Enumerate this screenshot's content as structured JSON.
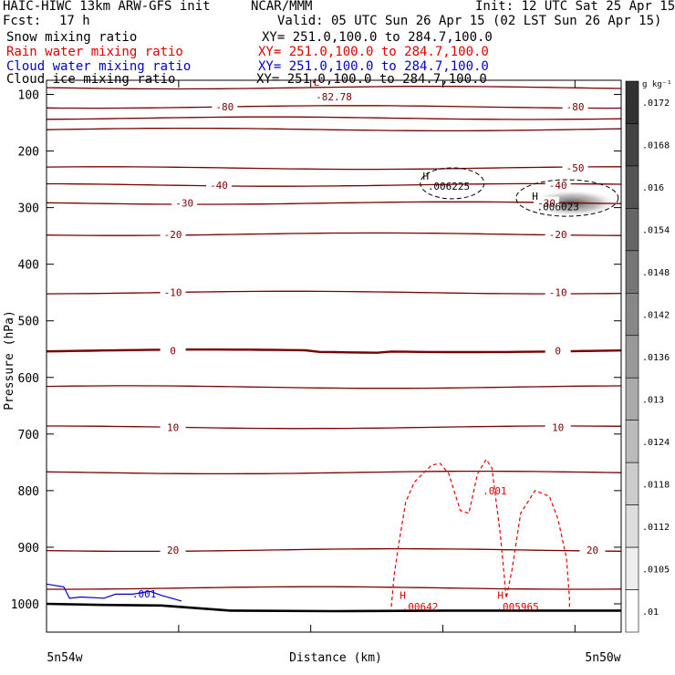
{
  "header": {
    "model": "HAIC-HIWC 13km ARW-GFS init",
    "org": "NCAR/MMM",
    "init": "Init: 12 UTC Sat 25 Apr 15",
    "fcst_label": "Fcst:",
    "fcst_value": "17 h",
    "valid": "Valid: 05 UTC Sun 26 Apr 15 (02 LST Sun 26 Apr 15)"
  },
  "fields": [
    {
      "name": "Snow mixing ratio",
      "xy": "XY= 251.0,100.0 to 284.7,100.0",
      "color": "#000000"
    },
    {
      "name": "Rain water mixing ratio",
      "xy": "XY= 251.0,100.0 to 284.7,100.0",
      "color": "#e00000"
    },
    {
      "name": "Cloud water mixing ratio",
      "xy": "XY= 251.0,100.0 to 284.7,100.0",
      "color": "#0000cc"
    },
    {
      "name": "Cloud ice mixing ratio",
      "xy": "XY= 251.0,100.0 to 284.7,100.0",
      "color": "#000000"
    }
  ],
  "colors": {
    "temperature": "#7a0000",
    "rain": "#e00000",
    "cloud_water": "#0000cc",
    "ice": "#000000"
  },
  "chart_data": {
    "type": "cross-section",
    "xlabel": "Distance (km)",
    "ylabel": "Pressure (hPa)",
    "x_tick_labels": [
      "5n54w",
      "5n50w"
    ],
    "y_ticks": [
      100,
      200,
      300,
      400,
      500,
      600,
      700,
      800,
      900,
      1000
    ],
    "ylim": [
      1050,
      75
    ],
    "temperature_isotherms": [
      {
        "p": 88,
        "labels": []
      },
      {
        "p": 122,
        "labels": [
          {
            "text": "-80",
            "x": 0.31
          },
          {
            "text": "-80",
            "x": 0.92
          }
        ]
      },
      {
        "p": 142,
        "labels": []
      },
      {
        "p": 162,
        "labels": []
      },
      {
        "p": 230,
        "labels": [
          {
            "text": "-50",
            "x": 0.92
          }
        ]
      },
      {
        "p": 260,
        "labels": [
          {
            "text": "-40",
            "x": 0.3
          },
          {
            "text": "-40",
            "x": 0.89
          }
        ]
      },
      {
        "p": 292,
        "labels": [
          {
            "text": "-30",
            "x": 0.24
          },
          {
            "text": "-30",
            "x": 0.87
          }
        ]
      },
      {
        "p": 347,
        "labels": [
          {
            "text": "-20",
            "x": 0.22
          },
          {
            "text": "-20",
            "x": 0.89
          }
        ]
      },
      {
        "p": 450,
        "labels": [
          {
            "text": "-10",
            "x": 0.22
          },
          {
            "text": "-10",
            "x": 0.89
          }
        ]
      },
      {
        "p": 553,
        "labels": [
          {
            "text": "0",
            "x": 0.22
          },
          {
            "text": "0",
            "x": 0.89
          }
        ],
        "bold": true
      },
      {
        "p": 617,
        "labels": []
      },
      {
        "p": 688,
        "labels": [
          {
            "text": "10",
            "x": 0.22
          },
          {
            "text": "10",
            "x": 0.89
          }
        ]
      },
      {
        "p": 768,
        "labels": []
      },
      {
        "p": 905,
        "labels": [
          {
            "text": "20",
            "x": 0.22
          },
          {
            "text": "20",
            "x": 0.95
          }
        ]
      },
      {
        "p": 972,
        "labels": []
      }
    ],
    "annotations": [
      {
        "text": "L",
        "x": 0.47,
        "p": 78,
        "color": "#e00000"
      },
      {
        "text": "-82.78",
        "x": 0.5,
        "p": 104,
        "color": "#7a0000"
      },
      {
        "text": "H",
        "x": 0.66,
        "p": 244,
        "color": "#000000"
      },
      {
        "text": ".006225",
        "x": 0.7,
        "p": 262,
        "color": "#000000"
      },
      {
        "text": "H",
        "x": 0.85,
        "p": 280,
        "color": "#000000"
      },
      {
        "text": ".006023",
        "x": 0.89,
        "p": 298,
        "color": "#000000"
      },
      {
        "text": ".001",
        "x": 0.78,
        "p": 800,
        "color": "#e00000"
      },
      {
        "text": "H",
        "x": 0.62,
        "p": 985,
        "color": "#e00000"
      },
      {
        "text": ".00642",
        "x": 0.65,
        "p": 1005,
        "color": "#e00000"
      },
      {
        "text": "H",
        "x": 0.79,
        "p": 985,
        "color": "#e00000"
      },
      {
        "text": ".005965",
        "x": 0.82,
        "p": 1005,
        "color": "#e00000"
      },
      {
        "text": ".001",
        "x": 0.17,
        "p": 982,
        "color": "#0000cc"
      }
    ],
    "snow_contours_value": ".006",
    "rain_contour_value": ".001",
    "cloud_water_contour_value": ".001",
    "colorbar": {
      "unit": "g kg⁻¹",
      "levels": [
        ".0172",
        ".0168",
        ".016",
        ".0154",
        ".0148",
        ".0142",
        ".0136",
        ".013",
        ".0124",
        ".0118",
        ".0112",
        ".0105",
        ".01"
      ]
    }
  }
}
